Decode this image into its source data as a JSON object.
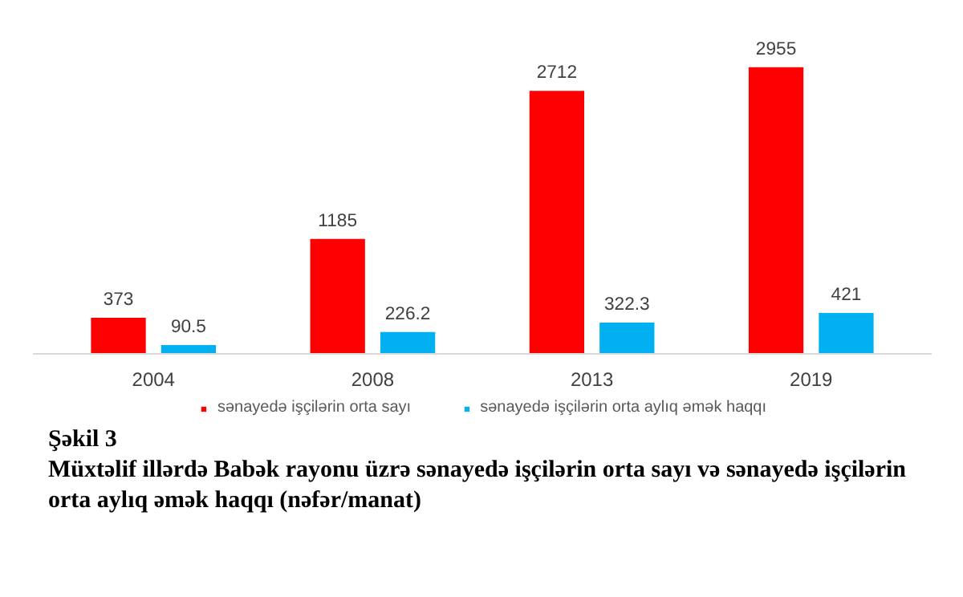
{
  "chart_data": {
    "type": "bar",
    "title": "Şəkil 3",
    "subtitle": "Müxtəlif illərdə Babək rayonu üzrə sənayedə işçilərin orta sayı və sənayedə işçilərin orta aylıq əmək haqqı (nəfər/manat)",
    "categories": [
      "2004",
      "2008",
      "2013",
      "2019"
    ],
    "series": [
      {
        "name": "sənayedə işçilərin orta sayı",
        "color": "#ff0000",
        "values": [
          373,
          1185,
          2712,
          2955
        ]
      },
      {
        "name": "sənayedə işçilərin orta aylıq əmək haqqı",
        "color": "#00b0f0",
        "values": [
          90.5,
          226.2,
          322.3,
          421
        ]
      }
    ],
    "data_labels": true,
    "legend": "bottom",
    "grid": false,
    "tick_labels": "x"
  }
}
